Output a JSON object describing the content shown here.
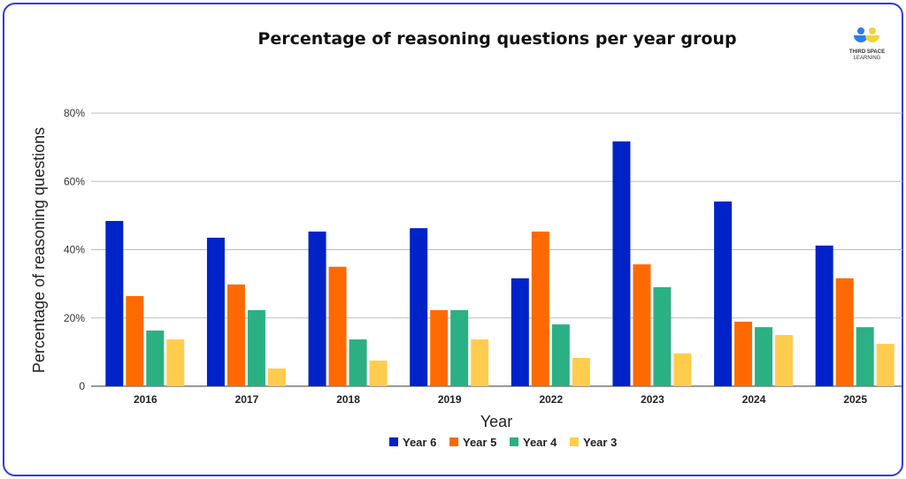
{
  "logo": {
    "text": "THIRD SPACE LEARNING"
  },
  "chart_data": {
    "type": "bar",
    "title": "Percentage of reasoning questions per year group",
    "xlabel": "Year",
    "ylabel": "Percentage of reasoning questions",
    "ylim": [
      0,
      80
    ],
    "yticks": [
      0,
      20,
      40,
      60,
      80
    ],
    "ytick_labels": [
      "0",
      "20%",
      "40%",
      "60%",
      "80%"
    ],
    "grid": true,
    "legend_position": "bottom",
    "categories": [
      "2016",
      "2017",
      "2018",
      "2019",
      "2022",
      "2023",
      "2024",
      "2025"
    ],
    "series": [
      {
        "name": "Year 6",
        "color": "#0023c8",
        "values": [
          48.4,
          43.5,
          45.3,
          46.3,
          31.6,
          71.7,
          54.1,
          41.2
        ]
      },
      {
        "name": "Year 5",
        "color": "#ff6a00",
        "values": [
          26.4,
          29.8,
          35.0,
          22.3,
          45.3,
          35.7,
          18.9,
          31.6
        ]
      },
      {
        "name": "Year 4",
        "color": "#2bb083",
        "values": [
          16.3,
          22.3,
          13.7,
          22.3,
          18.1,
          29.0,
          17.3,
          17.3
        ]
      },
      {
        "name": "Year 3",
        "color": "#ffcc4d",
        "values": [
          13.7,
          5.2,
          7.5,
          13.7,
          8.3,
          9.6,
          15.0,
          12.4
        ]
      }
    ]
  }
}
